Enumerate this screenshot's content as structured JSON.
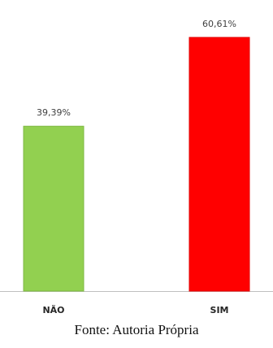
{
  "chart_data": {
    "type": "bar",
    "categories": [
      "NÃO",
      "SIM"
    ],
    "values": [
      39.39,
      60.61
    ],
    "data_labels": [
      "39,39%",
      "60,61%"
    ],
    "colors": [
      "#92d050",
      "#ff0000"
    ],
    "edge_colors": [
      "#7fb844",
      "#e00000"
    ],
    "ylim": [
      0,
      60.61
    ],
    "grid": false,
    "legend": "none"
  },
  "caption": "Fonte: Autoria Própria"
}
